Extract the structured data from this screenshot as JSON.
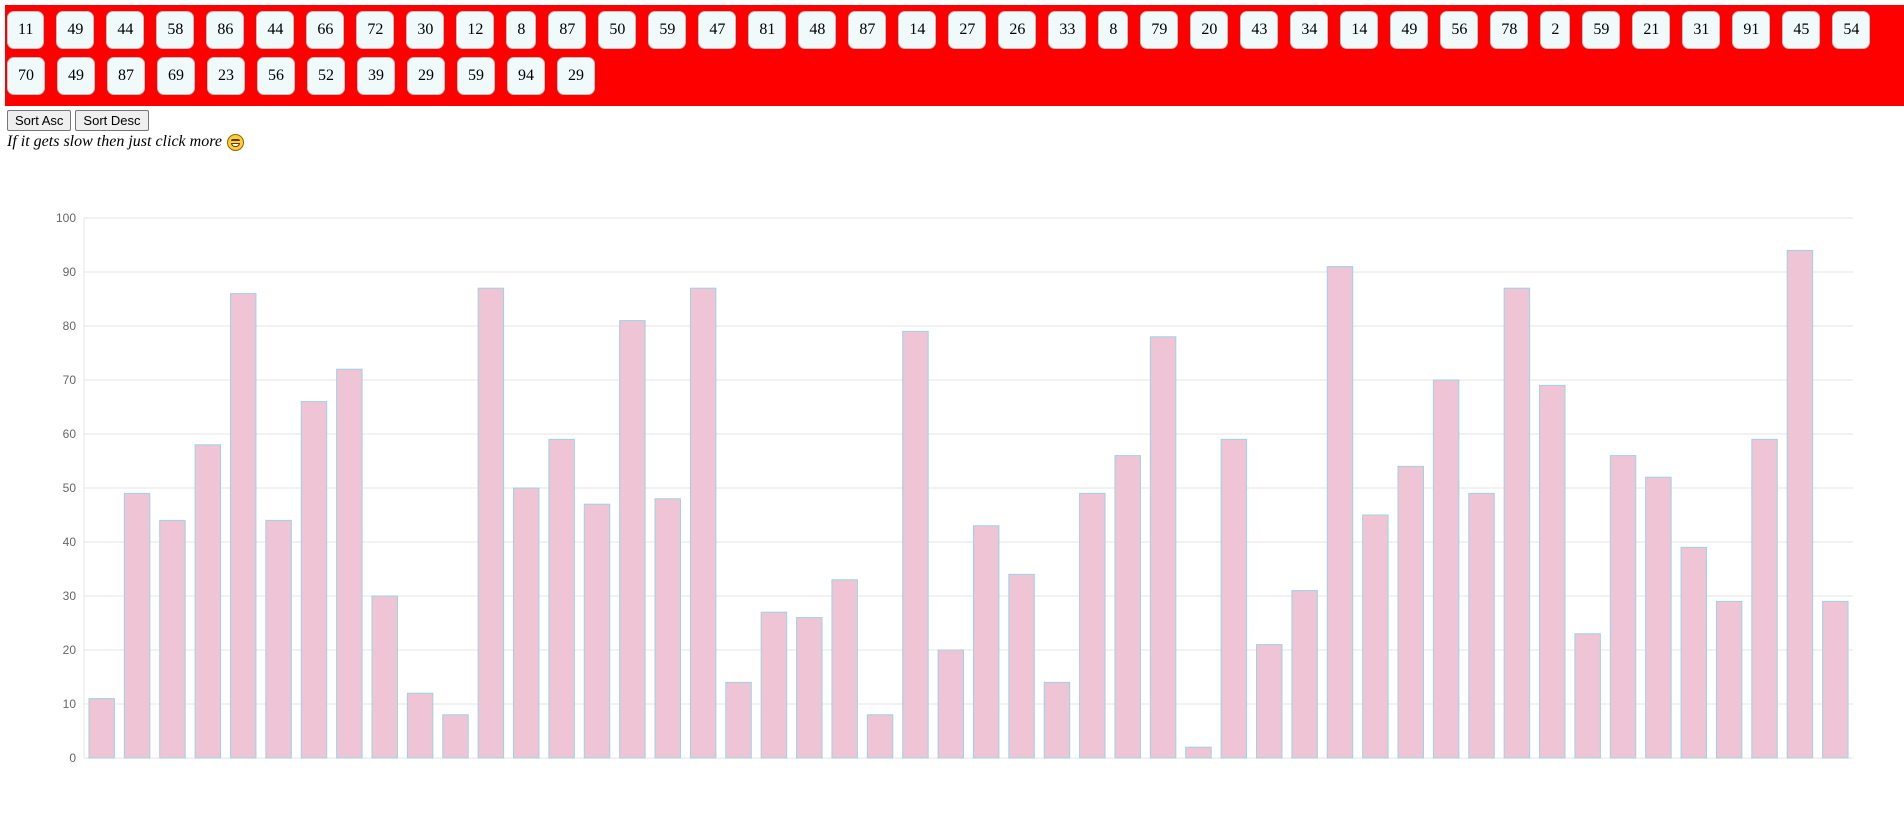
{
  "controls": {
    "sort_asc_label": "Sort Asc",
    "sort_desc_label": "Sort Desc"
  },
  "hint": {
    "text": "If it gets slow then just click more"
  },
  "icons": {
    "hint_emoji": "grinning-face-icon"
  },
  "colors": {
    "panel_background": "#ff0000",
    "bar_fill": "#efc4d4",
    "bar_border": "#9ad4e6",
    "gridline": "#e5e5e5"
  },
  "chart_data": {
    "type": "bar",
    "values": [
      11,
      49,
      44,
      58,
      86,
      44,
      66,
      72,
      30,
      12,
      8,
      87,
      50,
      59,
      47,
      81,
      48,
      87,
      14,
      27,
      26,
      33,
      8,
      79,
      20,
      43,
      34,
      14,
      49,
      56,
      78,
      2,
      59,
      21,
      31,
      91,
      45,
      54,
      70,
      49,
      87,
      69,
      23,
      56,
      52,
      39,
      29,
      59,
      94,
      29
    ],
    "ylim": [
      0,
      100
    ],
    "yticks": [
      0,
      10,
      20,
      30,
      40,
      50,
      60,
      70,
      80,
      90,
      100
    ],
    "grid": true,
    "legend": "none"
  }
}
